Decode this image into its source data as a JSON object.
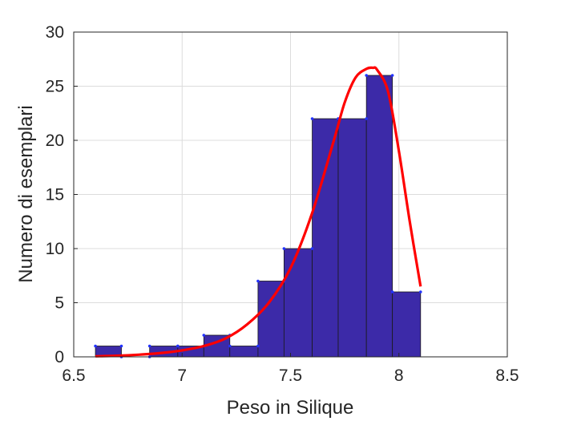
{
  "chart_data": {
    "type": "bar",
    "xlabel": "Peso in Silique",
    "ylabel": "Numero di esemplari",
    "xlim": [
      6.5,
      8.5
    ],
    "ylim": [
      0,
      30
    ],
    "grid": true,
    "x_ticks": [
      6.5,
      7,
      7.5,
      8,
      8.5
    ],
    "x_tick_labels": [
      "6.5",
      "7",
      "7.5",
      "8",
      "8.5"
    ],
    "y_ticks": [
      0,
      5,
      10,
      15,
      20,
      25,
      30
    ],
    "y_tick_labels": [
      "0",
      "5",
      "10",
      "15",
      "20",
      "25",
      "30"
    ],
    "bins": [
      {
        "x0": 6.6,
        "x1": 6.72,
        "count": 1
      },
      {
        "x0": 6.72,
        "x1": 6.85,
        "count": 0
      },
      {
        "x0": 6.85,
        "x1": 6.98,
        "count": 1
      },
      {
        "x0": 6.98,
        "x1": 7.1,
        "count": 1
      },
      {
        "x0": 7.1,
        "x1": 7.22,
        "count": 2
      },
      {
        "x0": 7.22,
        "x1": 7.35,
        "count": 1
      },
      {
        "x0": 7.35,
        "x1": 7.47,
        "count": 7
      },
      {
        "x0": 7.47,
        "x1": 7.6,
        "count": 10
      },
      {
        "x0": 7.6,
        "x1": 7.72,
        "count": 22
      },
      {
        "x0": 7.72,
        "x1": 7.85,
        "count": 22
      },
      {
        "x0": 7.85,
        "x1": 7.97,
        "count": 26
      },
      {
        "x0": 7.97,
        "x1": 8.1,
        "count": 6
      }
    ],
    "bar_color": "#3c2aa8",
    "marker_color": "#2233ff",
    "fit_curve": {
      "color": "#ff0000",
      "x": [
        6.6,
        6.7,
        6.8,
        6.9,
        7.0,
        7.1,
        7.2,
        7.3,
        7.4,
        7.5,
        7.6,
        7.7,
        7.75,
        7.8,
        7.85,
        7.88,
        7.9,
        7.95,
        8.0,
        8.05,
        8.1
      ],
      "y": [
        0.05,
        0.1,
        0.2,
        0.35,
        0.6,
        1.0,
        1.7,
        3.0,
        5.0,
        8.2,
        13.3,
        20.0,
        23.5,
        25.8,
        26.6,
        26.7,
        26.5,
        24.5,
        19.0,
        12.5,
        6.5
      ]
    }
  }
}
